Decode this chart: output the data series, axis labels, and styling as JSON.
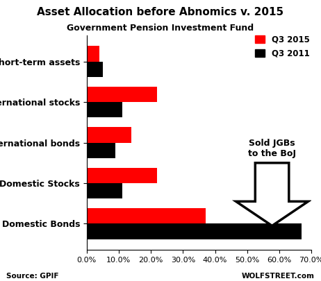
{
  "title": "Asset Allocation before Abnomics v. 2015",
  "subtitle": "Government Pension Investment Fund",
  "categories": [
    "Domestic Bonds",
    "Domestic Stocks",
    "International bonds",
    "International stocks",
    "Short-term assets"
  ],
  "q3_2015": [
    37.0,
    22.0,
    14.0,
    22.0,
    4.0
  ],
  "q3_2011": [
    67.0,
    11.0,
    9.0,
    11.0,
    5.0
  ],
  "color_2015": "#ff0000",
  "color_2011": "#000000",
  "xlim": [
    0,
    70
  ],
  "xticks": [
    0,
    10,
    20,
    30,
    40,
    50,
    60,
    70
  ],
  "source_text": "Source: GPIF",
  "watermark_text": "WOLFSTREET.com",
  "annotation_text": "Sold JGBs\nto the BoJ",
  "background_color": "#ffffff",
  "bar_height": 0.38
}
